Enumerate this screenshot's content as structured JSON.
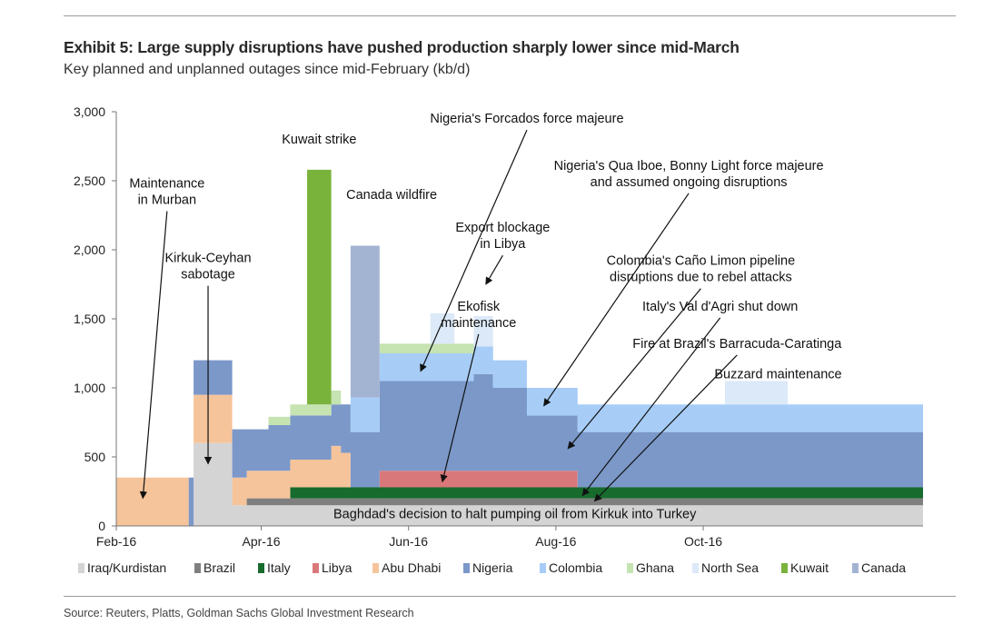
{
  "title": "Exhibit 5: Large supply disruptions have pushed production sharply lower since mid-March",
  "subtitle": "Key planned and unplanned outages since mid-February (kb/d)",
  "source": "Source: Reuters, Platts, Goldman Sachs Global Investment Research",
  "chart_data": {
    "type": "area",
    "stacked": true,
    "x_unit": "date",
    "x": [
      "2016-02-15",
      "2016-02-25",
      "2016-03-02",
      "2016-03-03",
      "2016-03-04",
      "2016-03-14",
      "2016-03-20",
      "2016-03-26",
      "2016-04-04",
      "2016-04-13",
      "2016-04-16",
      "2016-04-20",
      "2016-04-30",
      "2016-05-04",
      "2016-05-08",
      "2016-05-20",
      "2016-06-01",
      "2016-06-10",
      "2016-06-15",
      "2016-06-20",
      "2016-06-28",
      "2016-07-06",
      "2016-07-20",
      "2016-08-01",
      "2016-08-10",
      "2016-08-20",
      "2016-09-15",
      "2016-10-10",
      "2016-11-05",
      "2016-12-15"
    ],
    "xticks": [
      "Feb-16",
      "Apr-16",
      "Jun-16",
      "Aug-16",
      "Oct-16"
    ],
    "xtick_dates": [
      "2016-02-01",
      "2016-04-01",
      "2016-06-01",
      "2016-08-01",
      "2016-10-01"
    ],
    "xlim": [
      "2016-02-01",
      "2016-12-31"
    ],
    "yticks": [
      "3,000",
      "2,500",
      "2,000",
      "1,500",
      "1,000",
      "500",
      "0"
    ],
    "ylim": [
      0,
      3000
    ],
    "series": [
      {
        "name": "Iraq/Kurdistan",
        "color": "#d4d4d4",
        "values": [
          0,
          0,
          0,
          0,
          600,
          600,
          150,
          150,
          150,
          150,
          150,
          150,
          150,
          150,
          150,
          150,
          150,
          150,
          150,
          150,
          150,
          150,
          150,
          150,
          150,
          150,
          150,
          150,
          150,
          150
        ]
      },
      {
        "name": "Brazil",
        "color": "#7f7f7f",
        "values": [
          0,
          0,
          0,
          0,
          0,
          0,
          0,
          50,
          50,
          50,
          50,
          50,
          50,
          50,
          50,
          50,
          50,
          50,
          50,
          50,
          50,
          50,
          50,
          50,
          50,
          50,
          50,
          50,
          50,
          50
        ]
      },
      {
        "name": "Italy",
        "color": "#176b2c",
        "values": [
          0,
          0,
          0,
          0,
          0,
          0,
          0,
          0,
          0,
          80,
          80,
          80,
          80,
          80,
          80,
          80,
          80,
          80,
          80,
          80,
          80,
          80,
          80,
          80,
          80,
          80,
          80,
          80,
          80,
          80
        ]
      },
      {
        "name": "Libya",
        "color": "#d9787a",
        "values": [
          0,
          0,
          0,
          0,
          0,
          0,
          0,
          0,
          0,
          0,
          0,
          0,
          0,
          0,
          0,
          120,
          120,
          120,
          120,
          120,
          120,
          120,
          120,
          120,
          0,
          0,
          0,
          0,
          0,
          0
        ]
      },
      {
        "name": "Abu Dhabi",
        "color": "#f5c49b",
        "values": [
          350,
          350,
          0,
          0,
          350,
          350,
          200,
          200,
          200,
          200,
          200,
          200,
          300,
          250,
          0,
          0,
          0,
          0,
          0,
          0,
          0,
          0,
          0,
          0,
          0,
          0,
          0,
          0,
          0,
          0
        ]
      },
      {
        "name": "Nigeria",
        "color": "#7b98c9",
        "values": [
          0,
          0,
          350,
          350,
          250,
          250,
          350,
          300,
          330,
          320,
          320,
          320,
          300,
          350,
          400,
          650,
          650,
          650,
          650,
          650,
          700,
          600,
          400,
          400,
          400,
          400,
          400,
          400,
          400,
          400
        ]
      },
      {
        "name": "Colombia",
        "color": "#a7cdf7",
        "values": [
          0,
          0,
          0,
          0,
          0,
          0,
          0,
          0,
          0,
          0,
          0,
          0,
          0,
          0,
          250,
          200,
          200,
          200,
          200,
          200,
          200,
          200,
          200,
          200,
          200,
          200,
          200,
          200,
          200,
          200
        ]
      },
      {
        "name": "Ghana",
        "color": "#c6e3b2",
        "values": [
          0,
          0,
          0,
          0,
          0,
          0,
          0,
          0,
          60,
          80,
          80,
          80,
          100,
          0,
          0,
          70,
          70,
          70,
          70,
          70,
          0,
          0,
          0,
          0,
          0,
          0,
          0,
          0,
          0,
          0
        ]
      },
      {
        "name": "North Sea",
        "color": "#dce9f8",
        "values": [
          0,
          0,
          0,
          0,
          0,
          0,
          0,
          0,
          0,
          0,
          0,
          0,
          0,
          0,
          0,
          0,
          0,
          220,
          220,
          0,
          220,
          0,
          0,
          0,
          0,
          0,
          0,
          170,
          0,
          0
        ]
      },
      {
        "name": "Kuwait",
        "color": "#7ab33c",
        "values": [
          0,
          0,
          0,
          0,
          0,
          0,
          0,
          0,
          0,
          0,
          0,
          1700,
          0,
          0,
          0,
          0,
          0,
          0,
          0,
          0,
          0,
          0,
          0,
          0,
          0,
          0,
          0,
          0,
          0,
          0
        ]
      },
      {
        "name": "Canada",
        "color": "#a3b4d3",
        "values": [
          0,
          0,
          0,
          0,
          0,
          0,
          0,
          0,
          0,
          0,
          0,
          0,
          0,
          0,
          1100,
          0,
          0,
          0,
          0,
          0,
          0,
          0,
          0,
          0,
          0,
          0,
          0,
          0,
          0,
          0
        ]
      }
    ],
    "annotations": [
      {
        "text": [
          "Maintenance",
          "in Murban"
        ],
        "date": "2016-02-22",
        "value": 2450,
        "arrow_date": "2016-02-12",
        "arrow_value": 200
      },
      {
        "text": [
          "Kirkuk-Ceyhan",
          "sabotage"
        ],
        "date": "2016-03-10",
        "value": 1910,
        "arrow_date": "2016-03-10",
        "arrow_value": 450
      },
      {
        "text": [
          "Kuwait strike"
        ],
        "date": "2016-04-25",
        "value": 2770
      },
      {
        "text": [
          "Canada wildfire"
        ],
        "date": "2016-05-25",
        "value": 2370
      },
      {
        "text": [
          "Nigeria's Forcados force majeure"
        ],
        "date": "2016-07-20",
        "value": 2920,
        "arrow_date": "2016-06-06",
        "arrow_value": 1120
      },
      {
        "text": [
          "Nigeria's Qua Iboe, Bonny Light force majeure",
          "and assumed ongoing disruptions"
        ],
        "date": "2016-09-25",
        "value": 2580,
        "arrow_date": "2016-07-27",
        "arrow_value": 870
      },
      {
        "text": [
          "Export blockage",
          "in Libya"
        ],
        "date": "2016-07-10",
        "value": 2130,
        "arrow_date": "2016-07-03",
        "arrow_value": 1750
      },
      {
        "text": [
          "Ekofisk",
          "maintenance"
        ],
        "date": "2016-06-30",
        "value": 1560,
        "arrow_date": "2016-06-15",
        "arrow_value": 320
      },
      {
        "text": [
          "Colombia's Caño Limon pipeline",
          "disruptions due to rebel attacks"
        ],
        "date": "2016-09-30",
        "value": 1890,
        "arrow_date": "2016-08-06",
        "arrow_value": 560
      },
      {
        "text": [
          "Italy's Val d'Agri shut down"
        ],
        "date": "2016-10-08",
        "value": 1560,
        "arrow_date": "2016-08-12",
        "arrow_value": 220
      },
      {
        "text": [
          "Fire at Brazil's Barracuda-Caratinga"
        ],
        "date": "2016-10-15",
        "value": 1290,
        "arrow_date": "2016-08-17",
        "arrow_value": 180
      },
      {
        "text": [
          "Buzzard maintenance"
        ],
        "date": "2016-11-01",
        "value": 1070
      },
      {
        "text": [
          "Baghdad's decision to halt pumping oil from Kirkuk into Turkey"
        ],
        "date": "2016-07-15",
        "value": 55
      }
    ],
    "legend_position": "bottom"
  }
}
